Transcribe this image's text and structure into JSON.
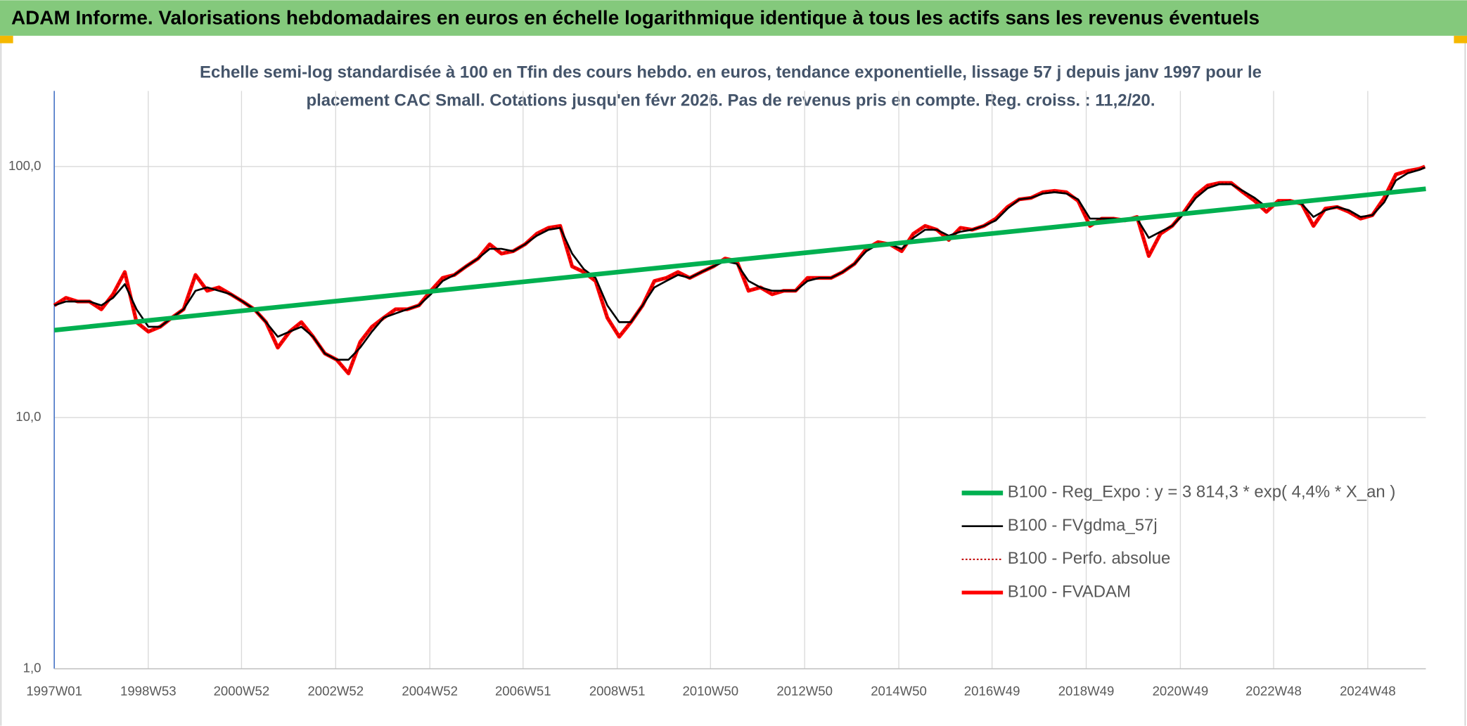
{
  "chart_data": {
    "type": "line",
    "title": "ADAM Informe. Valorisations hebdomadaires en euros en échelle logarithmique identique à tous les actifs sans les revenus éventuels",
    "subtitle": [
      "Echelle semi-log standardisée à 100 en Tfin des cours hebdo. en euros, tendance exponentielle, lissage 57 j depuis janv 1997 pour le",
      "placement CAC Small. Cotations jusqu'en févr 2026. Pas de revenus pris en compte. Reg. croiss. : 11,2/20."
    ],
    "x": [
      "1997W01",
      "1997W14",
      "1997W27",
      "1997W40",
      "1998W01",
      "1998W14",
      "1998W27",
      "1998W40",
      "1999W01",
      "1999W14",
      "1999W27",
      "1999W40",
      "2000W01",
      "2000W14",
      "2000W27",
      "2000W40",
      "2001W01",
      "2001W14",
      "2001W27",
      "2001W40",
      "2002W01",
      "2002W14",
      "2002W27",
      "2002W40",
      "2003W01",
      "2003W14",
      "2003W27",
      "2003W40",
      "2004W01",
      "2004W14",
      "2004W27",
      "2004W40",
      "2005W01",
      "2005W14",
      "2005W27",
      "2005W40",
      "2006W01",
      "2006W14",
      "2006W27",
      "2006W40",
      "2007W01",
      "2007W14",
      "2007W27",
      "2007W40",
      "2008W01",
      "2008W14",
      "2008W27",
      "2008W40",
      "2009W01",
      "2009W14",
      "2009W27",
      "2009W40",
      "2010W01",
      "2010W14",
      "2010W27",
      "2010W40",
      "2011W01",
      "2011W14",
      "2011W27",
      "2011W40",
      "2012W01",
      "2012W14",
      "2012W27",
      "2012W40",
      "2013W01",
      "2013W14",
      "2013W27",
      "2013W40",
      "2014W01",
      "2014W14",
      "2014W27",
      "2014W40",
      "2015W01",
      "2015W14",
      "2015W27",
      "2015W40",
      "2016W01",
      "2016W14",
      "2016W27",
      "2016W40",
      "2017W01",
      "2017W14",
      "2017W27",
      "2017W40",
      "2018W01",
      "2018W14",
      "2018W27",
      "2018W40",
      "2019W01",
      "2019W14",
      "2019W27",
      "2019W40",
      "2020W01",
      "2020W14",
      "2020W27",
      "2020W40",
      "2021W01",
      "2021W14",
      "2021W27",
      "2021W40",
      "2022W01",
      "2022W14",
      "2022W27",
      "2022W40",
      "2023W01",
      "2023W14",
      "2023W27",
      "2023W40",
      "2024W01",
      "2024W14",
      "2024W27",
      "2024W40",
      "2025W01",
      "2025W14",
      "2025W27",
      "2025W40",
      "2026W01",
      "2026W07"
    ],
    "xlim": [
      "1997W01",
      "2026W08"
    ],
    "xticks": [
      "1997W01",
      "1998W53",
      "2000W52",
      "2002W52",
      "2004W52",
      "2006W51",
      "2008W51",
      "2010W50",
      "2012W50",
      "2014W50",
      "2016W49",
      "2018W49",
      "2020W49",
      "2022W48",
      "2024W48"
    ],
    "ylim": [
      1,
      200
    ],
    "log_y": true,
    "grid": true,
    "legend": "lower right",
    "yticks": [
      {
        "value": 1,
        "label": "1,0"
      },
      {
        "value": 10,
        "label": "10,0"
      },
      {
        "value": 100,
        "label": "100,0"
      }
    ],
    "series": [
      {
        "name": "B100 - Reg_Expo : y = 3 814,3 * exp( 4,4% *  X_an )",
        "color": "#00b050",
        "width": 5,
        "x": [
          "1997W01",
          "2026W08"
        ],
        "values": [
          22.3,
          81.5
        ]
      },
      {
        "name": "B100 - FVgdma_57j",
        "color": "#000000",
        "width": 2,
        "values": [
          28,
          29,
          29,
          29,
          28,
          30,
          34,
          27,
          23,
          23,
          25,
          27,
          32,
          33,
          32,
          31,
          29,
          27,
          24,
          21,
          22,
          23,
          21,
          18,
          17,
          17,
          19,
          22,
          25,
          26,
          27,
          28,
          31,
          35,
          37,
          40,
          43,
          47,
          47,
          46,
          49,
          53,
          56,
          57,
          45,
          39,
          36,
          28,
          24,
          24,
          28,
          33,
          35,
          37,
          36,
          38,
          40,
          42,
          41,
          35,
          33,
          32,
          32,
          32,
          35,
          36,
          36,
          38,
          41,
          46,
          49,
          49,
          47,
          52,
          56,
          56,
          53,
          55,
          56,
          58,
          61,
          68,
          74,
          75,
          78,
          79,
          78,
          74,
          62,
          62,
          62,
          61,
          62,
          52,
          55,
          58,
          65,
          75,
          82,
          85,
          85,
          80,
          75,
          69,
          72,
          73,
          71,
          63,
          67,
          69,
          67,
          63,
          64,
          72,
          88,
          94,
          97,
          99
        ]
      },
      {
        "name": "B100 - Perfo. absolue",
        "color": "#c00000",
        "width": 1.5,
        "dash": "2 2",
        "values": [
          28,
          30,
          29,
          29,
          27,
          31,
          38,
          24,
          22,
          23,
          25,
          27,
          37,
          32,
          33,
          31,
          29,
          27,
          24,
          19,
          22,
          24,
          21,
          18,
          17,
          15,
          20,
          23,
          25,
          27,
          27,
          28,
          32,
          36,
          37,
          40,
          43,
          49,
          45,
          46,
          49,
          54,
          57,
          58,
          40,
          38,
          35,
          25,
          21,
          24,
          28,
          35,
          36,
          38,
          36,
          38,
          40,
          43,
          42,
          32,
          33,
          31,
          32,
          32,
          36,
          36,
          36,
          38,
          41,
          47,
          50,
          49,
          46,
          54,
          58,
          56,
          51,
          57,
          56,
          58,
          62,
          69,
          74,
          75,
          79,
          80,
          79,
          73,
          58,
          62,
          62,
          61,
          63,
          44,
          54,
          58,
          66,
          77,
          84,
          86,
          86,
          79,
          73,
          66,
          73,
          73,
          71,
          58,
          68,
          69,
          66,
          62,
          64,
          75,
          93,
          96,
          98,
          100
        ]
      },
      {
        "name": "B100 - FVADAM",
        "color": "#ff0000",
        "width": 4,
        "values": [
          28,
          30,
          29,
          29,
          27,
          31,
          38,
          24,
          22,
          23,
          25,
          27,
          37,
          32,
          33,
          31,
          29,
          27,
          24,
          19,
          22,
          24,
          21,
          18,
          17,
          15,
          20,
          23,
          25,
          27,
          27,
          28,
          32,
          36,
          37,
          40,
          43,
          49,
          45,
          46,
          49,
          54,
          57,
          58,
          40,
          38,
          35,
          25,
          21,
          24,
          28,
          35,
          36,
          38,
          36,
          38,
          40,
          43,
          42,
          32,
          33,
          31,
          32,
          32,
          36,
          36,
          36,
          38,
          41,
          47,
          50,
          49,
          46,
          54,
          58,
          56,
          51,
          57,
          56,
          58,
          62,
          69,
          74,
          75,
          79,
          80,
          79,
          73,
          58,
          62,
          62,
          61,
          63,
          44,
          54,
          58,
          66,
          77,
          84,
          86,
          86,
          79,
          73,
          66,
          73,
          73,
          71,
          58,
          68,
          69,
          66,
          62,
          64,
          75,
          93,
          96,
          98,
          100
        ]
      }
    ]
  }
}
